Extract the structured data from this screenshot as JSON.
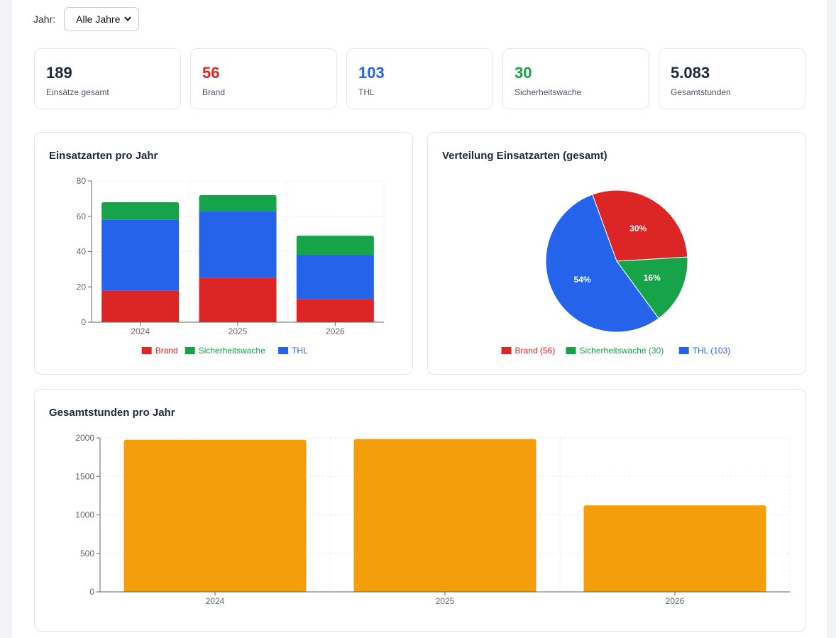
{
  "filter": {
    "label": "Jahr:",
    "selected": "Alle Jahre"
  },
  "kpis": [
    {
      "value": "189",
      "label": "Einsätze gesamt",
      "color": "#1f2937"
    },
    {
      "value": "56",
      "label": "Brand",
      "color": "#dc2626"
    },
    {
      "value": "103",
      "label": "THL",
      "color": "#2563eb"
    },
    {
      "value": "30",
      "label": "Sicherheitswache",
      "color": "#16a34a"
    },
    {
      "value": "5.083",
      "label": "Gesamtstunden",
      "color": "#1f2937"
    }
  ],
  "colors": {
    "brand": "#dc2626",
    "thl": "#2563eb",
    "sicherheitswache": "#16a34a",
    "hours": "#f59e0b"
  },
  "cards": {
    "stacked_title": "Einsatzarten pro Jahr",
    "pie_title": "Verteilung Einsatzarten (gesamt)",
    "hours_title": "Gesamtstunden pro Jahr"
  },
  "chart_data": [
    {
      "type": "bar",
      "stacked": true,
      "title": "Einsatzarten pro Jahr",
      "categories": [
        "2024",
        "2025",
        "2026"
      ],
      "series": [
        {
          "name": "Brand",
          "values": [
            18,
            25,
            13
          ],
          "color": "#dc2626"
        },
        {
          "name": "THL",
          "values": [
            40,
            38,
            25
          ],
          "color": "#2563eb"
        },
        {
          "name": "Sicherheitswache",
          "values": [
            10,
            9,
            11
          ],
          "color": "#16a34a"
        }
      ],
      "legend": [
        "Brand",
        "Sicherheitswache",
        "THL"
      ],
      "legend_position": "bottom",
      "ylim": [
        0,
        80
      ],
      "yticks": [
        0,
        20,
        40,
        60,
        80
      ],
      "grid": true
    },
    {
      "type": "pie",
      "title": "Verteilung Einsatzarten (gesamt)",
      "slices": [
        {
          "name": "Brand",
          "value": 56,
          "percent_label": "30%",
          "legend_label": "Brand (56)",
          "color": "#dc2626"
        },
        {
          "name": "Sicherheitswache",
          "value": 30,
          "percent_label": "16%",
          "legend_label": "Sicherheitswache (30)",
          "color": "#16a34a"
        },
        {
          "name": "THL",
          "value": 103,
          "percent_label": "54%",
          "legend_label": "THL (103)",
          "color": "#2563eb"
        }
      ],
      "legend_position": "bottom"
    },
    {
      "type": "bar",
      "title": "Gesamtstunden pro Jahr",
      "categories": [
        "2024",
        "2025",
        "2026"
      ],
      "values": [
        1975,
        1985,
        1123
      ],
      "color": "#f59e0b",
      "ylim": [
        0,
        2000
      ],
      "yticks": [
        0,
        500,
        1000,
        1500,
        2000
      ],
      "grid": true
    }
  ]
}
